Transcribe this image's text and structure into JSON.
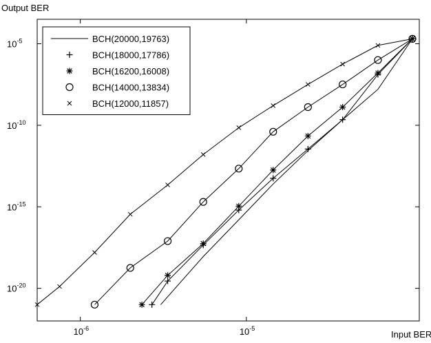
{
  "chart_data": {
    "type": "line",
    "ylabel": "Output BER",
    "xlabel": "Input BER",
    "x_scale": "log",
    "y_scale": "log",
    "xlim": [
      5.5e-07,
      0.00011
    ],
    "ylim": [
      1e-22,
      0.000316
    ],
    "x_ticks": [
      {
        "value": 1e-06,
        "base": "10",
        "exp": "-6"
      },
      {
        "value": 1e-05,
        "base": "10",
        "exp": "-5"
      }
    ],
    "y_ticks": [
      {
        "value": 1e-05,
        "base": "10",
        "exp": "-5"
      },
      {
        "value": 1e-10,
        "base": "10",
        "exp": "-10"
      },
      {
        "value": 1e-15,
        "base": "10",
        "exp": "-15"
      },
      {
        "value": 1e-20,
        "base": "10",
        "exp": "-20"
      }
    ],
    "grid": false,
    "legend_position": "top-left",
    "series": [
      {
        "name": "BCH(20000,19763)",
        "marker": "none",
        "x": [
          3.05e-06,
          5.5e-06,
          9e-06,
          1.45e-05,
          2.35e-05,
          3.8e-05,
          6.2e-05,
          0.0001
        ],
        "y": [
          1e-21,
          8.9e-19,
          1.6e-16,
          2.5e-14,
          2.8e-12,
          2.2e-10,
          1.6e-08,
          2e-05
        ]
      },
      {
        "name": "BCH(18000,17786)",
        "marker": "plus",
        "x": [
          2.7e-06,
          3.36e-06,
          5.5e-06,
          9e-06,
          1.45e-05,
          2.35e-05,
          3.8e-05,
          6.2e-05,
          0.0001
        ],
        "y": [
          1e-21,
          2.8e-20,
          4.5e-18,
          6.3e-16,
          5.6e-14,
          3.5e-12,
          2.2e-10,
          1.3e-07,
          2e-05
        ]
      },
      {
        "name": "BCH(16200,16008)",
        "marker": "star",
        "x": [
          2.35e-06,
          3.36e-06,
          5.5e-06,
          9e-06,
          1.45e-05,
          2.35e-05,
          3.8e-05,
          6.2e-05,
          0.0001
        ],
        "y": [
          1e-21,
          6.3e-20,
          5.6e-18,
          1.1e-15,
          1.8e-13,
          2.2e-11,
          1.3e-09,
          1.6e-07,
          2e-05
        ]
      },
      {
        "name": "BCH(14000,13834)",
        "marker": "circle",
        "x": [
          1.22e-06,
          2e-06,
          3.36e-06,
          5.5e-06,
          9e-06,
          1.45e-05,
          2.35e-05,
          3.8e-05,
          6.2e-05,
          0.0001
        ],
        "y": [
          1e-21,
          1.8e-19,
          7.9e-18,
          2e-15,
          2.2e-13,
          4e-11,
          1.3e-09,
          3.2e-08,
          1e-06,
          2e-05
        ]
      },
      {
        "name": "BCH(12000,11857)",
        "marker": "x",
        "x": [
          5.5e-07,
          7.5e-07,
          1.22e-06,
          2e-06,
          3.36e-06,
          5.5e-06,
          9e-06,
          1.45e-05,
          2.35e-05,
          3.8e-05,
          6.2e-05,
          0.0001
        ],
        "y": [
          1e-21,
          1.3e-20,
          1.6e-18,
          3.5e-16,
          2.2e-14,
          1.6e-12,
          7.1e-11,
          1.6e-09,
          3.2e-08,
          5.6e-07,
          7.9e-06,
          2e-05
        ]
      }
    ]
  }
}
